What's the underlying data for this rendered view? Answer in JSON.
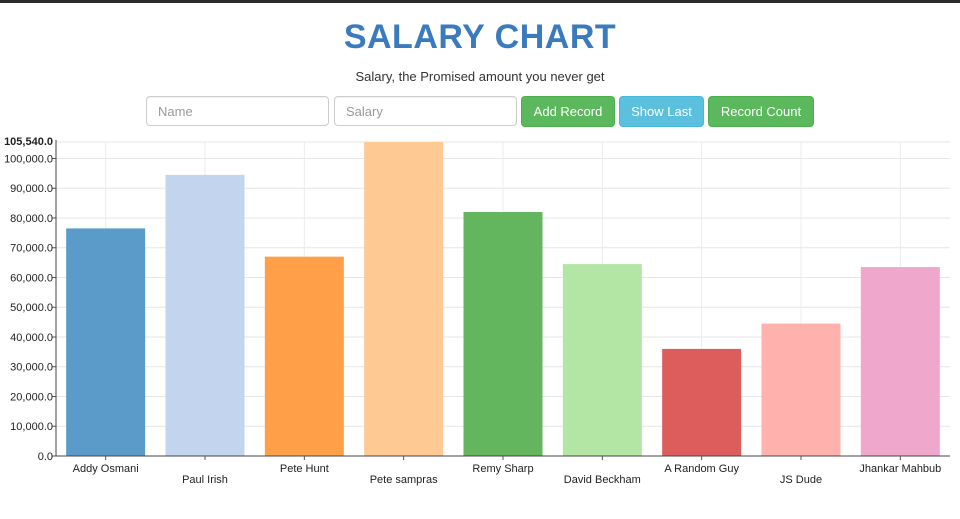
{
  "header": {
    "title": "SALARY CHART",
    "subtitle": "Salary, the Promised amount you never get"
  },
  "form": {
    "name_placeholder": "Name",
    "salary_placeholder": "Salary",
    "add_label": "Add Record",
    "show_last_label": "Show Last",
    "count_label": "Record Count"
  },
  "colors": {
    "title": "#3a7abf",
    "btn_green": "#5cb85c",
    "btn_blue": "#5bc0de"
  },
  "chart_data": {
    "type": "bar",
    "title": "",
    "xlabel": "",
    "ylabel": "",
    "ylim": [
      0,
      105540
    ],
    "yticks": [
      0,
      10000,
      20000,
      30000,
      40000,
      50000,
      60000,
      70000,
      80000,
      90000,
      100000
    ],
    "ytick_labels": [
      "0.0",
      "10,000.0",
      "20,000.0",
      "30,000.0",
      "40,000.0",
      "50,000.0",
      "60,000.0",
      "70,000.0",
      "80,000.0",
      "90,000.0",
      "100,000.0"
    ],
    "ymax_label": "105,540.0",
    "grid": true,
    "categories": [
      "Addy Osmani",
      "Paul Irish",
      "Pete Hunt",
      "Pete sampras",
      "Remy Sharp",
      "David Beckham",
      "A Random Guy",
      "JS Dude",
      "Jhankar Mahbub"
    ],
    "values": [
      76500,
      94500,
      67000,
      105540,
      82000,
      64500,
      36000,
      44500,
      63500
    ],
    "colors": [
      "#5a9bc9",
      "#c2d4ee",
      "#ff9f48",
      "#ffc993",
      "#63b65d",
      "#b3e5a4",
      "#dd5c5c",
      "#ffb1ad",
      "#efa8cb"
    ]
  }
}
